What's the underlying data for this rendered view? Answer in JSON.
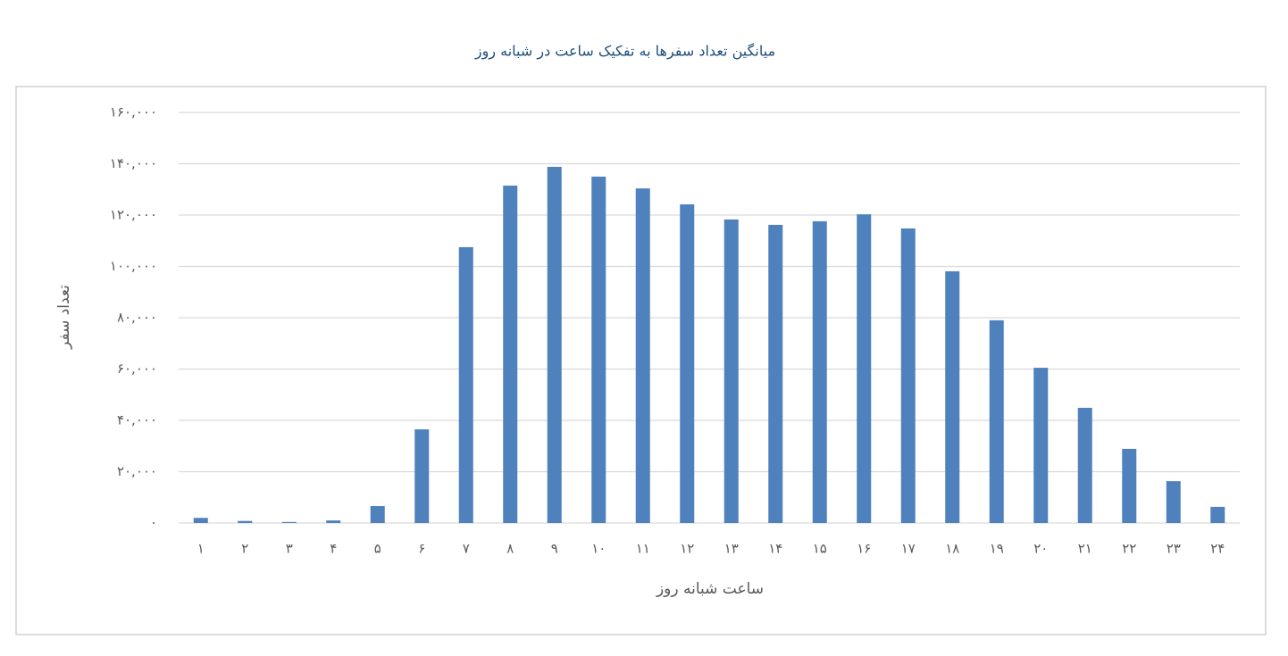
{
  "chart_data": {
    "type": "bar",
    "title": "میانگین تعداد سفرها به تفکیک ساعت در شبانه روز",
    "x_label": "ساعت شبانه روز",
    "y_label": "تعداد سفر",
    "categories": [
      "۱",
      "۲",
      "۳",
      "۴",
      "۵",
      "۶",
      "۷",
      "۸",
      "۹",
      "۱۰",
      "۱۱",
      "۱۲",
      "۱۳",
      "۱۴",
      "۱۵",
      "۱۶",
      "۱۷",
      "۱۸",
      "۱۹",
      "۲۰",
      "۲۱",
      "۲۲",
      "۲۳",
      "۲۴"
    ],
    "values": [
      2000,
      800,
      400,
      1000,
      6600,
      36500,
      107500,
      131500,
      138800,
      135000,
      130400,
      124200,
      118300,
      116200,
      117600,
      120300,
      114800,
      98100,
      79000,
      60500,
      44900,
      28900,
      16300,
      6300
    ],
    "color": "#4f81bd",
    "ylim": [
      0,
      160000
    ],
    "yticks": [
      {
        "value": 0,
        "label": "۰"
      },
      {
        "value": 20000,
        "label": "۲۰,۰۰۰"
      },
      {
        "value": 40000,
        "label": "۴۰,۰۰۰"
      },
      {
        "value": 60000,
        "label": "۶۰,۰۰۰"
      },
      {
        "value": 80000,
        "label": "۸۰,۰۰۰"
      },
      {
        "value": 100000,
        "label": "۱۰۰,۰۰۰"
      },
      {
        "value": 120000,
        "label": "۱۲۰,۰۰۰"
      },
      {
        "value": 140000,
        "label": "۱۴۰,۰۰۰"
      },
      {
        "value": 160000,
        "label": "۱۶۰,۰۰۰"
      }
    ],
    "grid": true
  }
}
